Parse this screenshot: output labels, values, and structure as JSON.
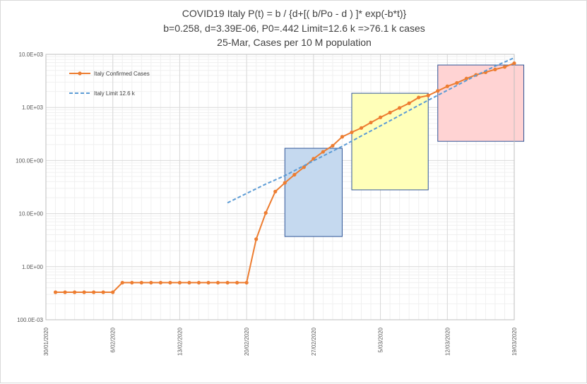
{
  "chart_data": {
    "type": "line",
    "title": "COVID19 Italy P(t) = b / {d+[( b/Po - d ) ]* exp(-b*t)}",
    "subtitle": "b=0.258, d=3.39E-06, P0=.442 Limit=12.6 k =>76.1 k cases",
    "subtitle2": "25-Mar, Cases per 10 M population",
    "y_scale": "log",
    "ylim": [
      0.1,
      10000
    ],
    "y_ticks": [
      {
        "value": 10000,
        "label": "10.0E+03"
      },
      {
        "value": 1000,
        "label": "1.0E+03"
      },
      {
        "value": 100,
        "label": "100.0E+00"
      },
      {
        "value": 10,
        "label": "10.0E+00"
      },
      {
        "value": 1,
        "label": "1.0E+00"
      },
      {
        "value": 0.1,
        "label": "100.0E-03"
      }
    ],
    "xlim": [
      "30/01/2020",
      "19/03/2020"
    ],
    "x_ticks": [
      "30/01/2020",
      "6/02/2020",
      "13/02/2020",
      "20/02/2020",
      "27/02/2020",
      "5/03/2020",
      "12/03/2020",
      "19/03/2020"
    ],
    "grid": true,
    "legend_position": "top-left",
    "series": [
      {
        "name": "Italy Confirmed Cases",
        "color": "#ED7D31",
        "style": "solid-markers",
        "x": [
          "31/01/2020",
          "1/02/2020",
          "2/02/2020",
          "3/02/2020",
          "4/02/2020",
          "5/02/2020",
          "6/02/2020",
          "7/02/2020",
          "8/02/2020",
          "9/02/2020",
          "10/02/2020",
          "11/02/2020",
          "12/02/2020",
          "13/02/2020",
          "14/02/2020",
          "15/02/2020",
          "16/02/2020",
          "17/02/2020",
          "18/02/2020",
          "19/02/2020",
          "20/02/2020",
          "21/02/2020",
          "22/02/2020",
          "23/02/2020",
          "24/02/2020",
          "25/02/2020",
          "26/02/2020",
          "27/02/2020",
          "28/02/2020",
          "29/02/2020",
          "1/03/2020",
          "2/03/2020",
          "3/03/2020",
          "4/03/2020",
          "5/03/2020",
          "6/03/2020",
          "7/03/2020",
          "8/03/2020",
          "9/03/2020",
          "10/03/2020",
          "11/03/2020",
          "12/03/2020",
          "13/03/2020",
          "14/03/2020",
          "15/03/2020",
          "16/03/2020",
          "17/03/2020",
          "18/03/2020",
          "19/03/2020"
        ],
        "values": [
          0.33,
          0.33,
          0.33,
          0.33,
          0.33,
          0.33,
          0.33,
          0.5,
          0.5,
          0.5,
          0.5,
          0.5,
          0.5,
          0.5,
          0.5,
          0.5,
          0.5,
          0.5,
          0.5,
          0.5,
          0.5,
          3.3,
          10.3,
          26,
          38,
          54,
          75,
          108,
          146,
          190,
          280,
          340,
          410,
          520,
          650,
          800,
          980,
          1200,
          1540,
          1680,
          2050,
          2500,
          2900,
          3500,
          4100,
          4600,
          5200,
          5800,
          6800
        ]
      },
      {
        "name": "Italy Limit 12.6 k",
        "color": "#5B9BD5",
        "style": "dashed",
        "x": [
          "18/02/2020",
          "20/02/2020",
          "22/02/2020",
          "24/02/2020",
          "26/02/2020",
          "28/02/2020",
          "1/03/2020",
          "3/03/2020",
          "5/03/2020",
          "7/03/2020",
          "9/03/2020",
          "11/03/2020",
          "13/03/2020",
          "15/03/2020",
          "17/03/2020",
          "19/03/2020"
        ],
        "values": [
          16,
          24,
          36,
          52,
          80,
          122,
          185,
          290,
          450,
          700,
          1100,
          1700,
          2600,
          4000,
          6000,
          8600
        ]
      }
    ],
    "highlight_regions": [
      {
        "name": "blue",
        "x_from": "24/02/2020",
        "x_to": "1/03/2020",
        "y_from": 3.7,
        "y_to": 170,
        "fill": "#C5D9EF",
        "stroke": "#2F5597"
      },
      {
        "name": "yellow",
        "x_from": "2/03/2020",
        "x_to": "10/03/2020",
        "y_from": 28,
        "y_to": 1850,
        "fill": "#FFFFB9",
        "stroke": "#2F5597"
      },
      {
        "name": "pink",
        "x_from": "11/03/2020",
        "x_to": "20/03/2020",
        "y_from": 230,
        "y_to": 6300,
        "fill": "#FFD3D3",
        "stroke": "#2F5597"
      }
    ]
  }
}
